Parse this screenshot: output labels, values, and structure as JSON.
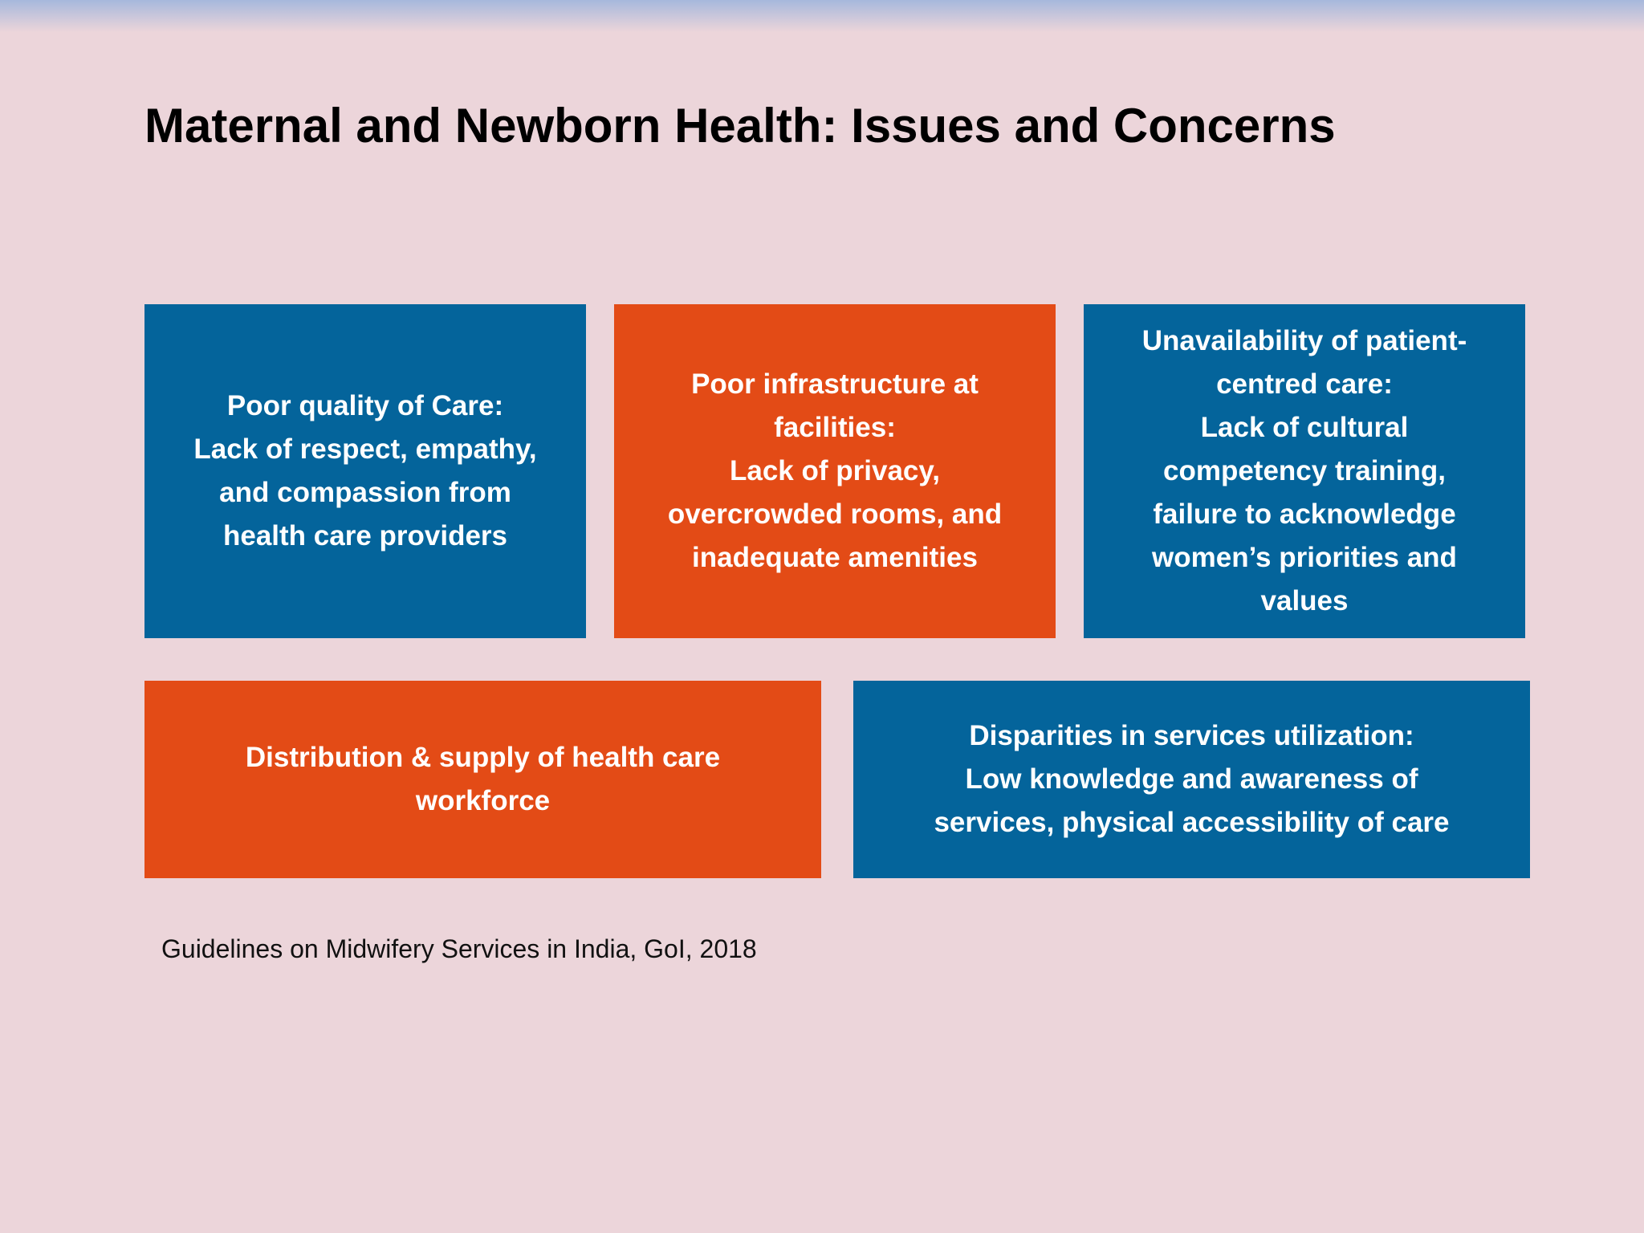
{
  "title": "Maternal and Newborn Health: Issues and Concerns",
  "boxes": [
    {
      "color": "blue",
      "lines": [
        "Poor quality of Care:",
        "Lack of respect, empathy,",
        "and compassion from",
        "health care providers"
      ]
    },
    {
      "color": "orange",
      "lines": [
        "Poor infrastructure at",
        "facilities:",
        "Lack of privacy,",
        "overcrowded rooms, and",
        "inadequate amenities"
      ]
    },
    {
      "color": "blue",
      "lines": [
        "Unavailability of patient-",
        "centred care:",
        "Lack of cultural",
        "competency training,",
        "failure to acknowledge",
        "women’s priorities and",
        "values"
      ]
    },
    {
      "color": "orange",
      "lines": [
        "Distribution & supply of health care",
        "workforce"
      ]
    },
    {
      "color": "blue",
      "lines": [
        "Disparities in services utilization:",
        "Low knowledge and awareness of",
        "services, physical accessibility of care"
      ]
    }
  ],
  "citation": "Guidelines on Midwifery Services in India, GoI, 2018"
}
